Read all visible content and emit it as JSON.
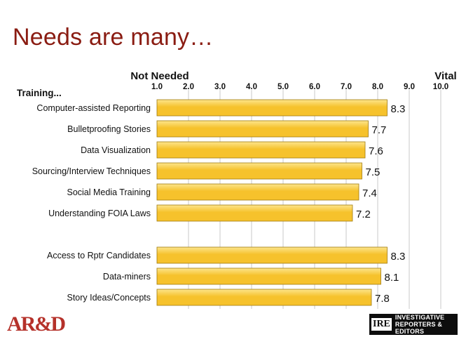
{
  "title": "Needs are many…",
  "chart_data": {
    "type": "bar",
    "orientation": "horizontal",
    "left_axis_label": "Not Needed",
    "right_axis_label": "Vital",
    "row_header": "Training...",
    "xlim": [
      1.0,
      10.0
    ],
    "ticks": [
      "1.0",
      "2.0",
      "3.0",
      "4.0",
      "5.0",
      "6.0",
      "7.0",
      "8.0",
      "9.0",
      "10.0"
    ],
    "gridlines": true,
    "groups": [
      {
        "categories": [
          "Computer-assisted Reporting",
          "Bulletproofing Stories",
          "Data Visualization",
          "Sourcing/Interview Techniques",
          "Social Media Training",
          "Understanding FOIA Laws"
        ],
        "values": [
          8.3,
          7.7,
          7.6,
          7.5,
          7.4,
          7.2
        ]
      },
      {
        "categories": [
          "Access to Rptr Candidates",
          "Data-miners",
          "Story Ideas/Concepts"
        ],
        "values": [
          8.3,
          8.1,
          7.8
        ]
      }
    ],
    "bar_color": "#f6c22c",
    "bar_color_light": "#fde58c",
    "bar_edge": "#a07a10",
    "grid_color": "#c9c9c9"
  },
  "logos": {
    "left": "AR&D",
    "right_mark": "IRE",
    "right_line1": "INVESTIGATIVE",
    "right_line2": "REPORTERS & EDITORS"
  }
}
